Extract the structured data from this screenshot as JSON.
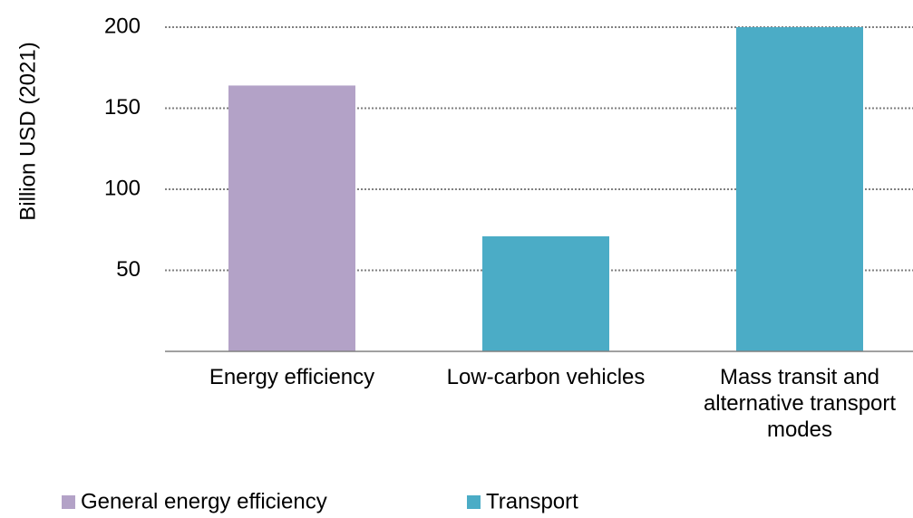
{
  "chart_data": {
    "type": "bar",
    "ylabel": "Billion USD (2021)",
    "categories": [
      "Energy efficiency",
      "Low-carbon vehicles",
      "Mass transit and alternative transport modes"
    ],
    "series": [
      {
        "name": "General energy efficiency",
        "color": "#b3a2c7",
        "values": [
          164,
          null,
          null
        ]
      },
      {
        "name": "Transport",
        "color": "#4bacc6",
        "values": [
          null,
          71,
          200
        ]
      }
    ],
    "ylim": [
      0,
      200
    ],
    "yticks": [
      50,
      100,
      150,
      200
    ],
    "grid": true,
    "legend": "bottom"
  }
}
